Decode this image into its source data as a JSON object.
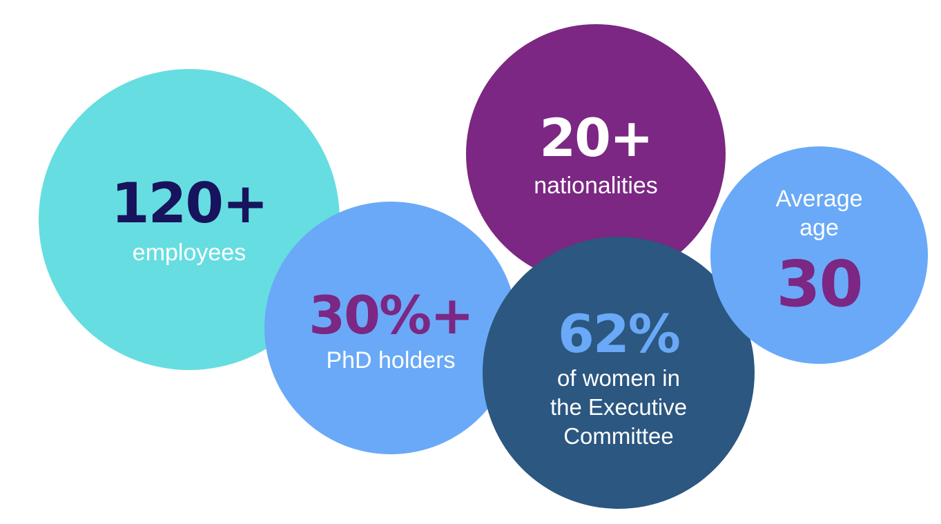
{
  "stats": {
    "employees": {
      "value": "120+",
      "label": "employees",
      "color": "#66dde1"
    },
    "nationalities": {
      "value": "20+",
      "label": "nationalities",
      "color": "#7b2783"
    },
    "phd": {
      "value": "30%+",
      "label": "PhD holders",
      "color": "#6aa9f7"
    },
    "women": {
      "value": "62%",
      "label_lines": [
        "of women in",
        "the Executive",
        "Committee"
      ],
      "color": "#2b5780"
    },
    "age": {
      "label_lines": [
        "Average",
        "age"
      ],
      "value": "30",
      "color": "#6aa9f7"
    }
  }
}
